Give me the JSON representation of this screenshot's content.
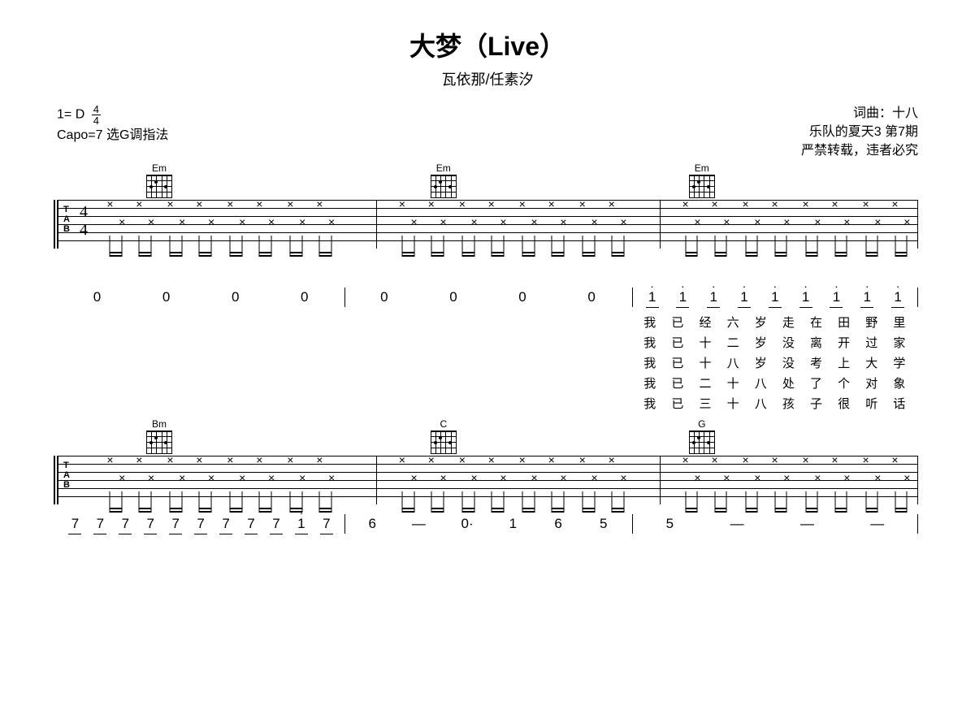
{
  "title": "大梦（Live）",
  "subtitle": "瓦依那/任素汐",
  "meta_left": {
    "key_label": "1= D",
    "time_num": "4",
    "time_den": "4",
    "capo": "Capo=7  选G调指法"
  },
  "meta_right": {
    "credit": "词曲：十八",
    "show": "乐队的夏天3 第7期",
    "notice": "严禁转载，违者必究"
  },
  "system1": {
    "chords": [
      {
        "name": "Em",
        "left_pct": 10
      },
      {
        "name": "Em",
        "left_pct": 43
      },
      {
        "name": "Em",
        "left_pct": 73
      }
    ],
    "barlines_pct": [
      37,
      70
    ],
    "strum_groups": [
      {
        "start": 6,
        "count": 4,
        "span": 7
      },
      {
        "start": 40,
        "count": 4,
        "span": 7
      },
      {
        "start": 73,
        "count": 4,
        "span": 7
      }
    ],
    "numbers": {
      "m1": [
        "0",
        "0",
        "0",
        "0"
      ],
      "m2": [
        "0",
        "0",
        "0",
        "0"
      ],
      "m3": [
        "i",
        "i",
        "i",
        "i",
        "i",
        "i",
        "i",
        "i",
        "i"
      ]
    },
    "lyrics": [
      [
        "我",
        "已",
        "经",
        "六",
        "岁",
        "走",
        "在",
        "田",
        "野",
        "里"
      ],
      [
        "我",
        "已",
        "十",
        "二",
        "岁",
        "没",
        "离",
        "开",
        "过",
        "家"
      ],
      [
        "我",
        "已",
        "十",
        "八",
        "岁",
        "没",
        "考",
        "上",
        "大",
        "学"
      ],
      [
        "我",
        "已",
        "二",
        "十",
        "八",
        "处",
        "了",
        "个",
        "对",
        "象"
      ],
      [
        "我",
        "已",
        "三",
        "十",
        "八",
        "孩",
        "子",
        "很",
        "听",
        "话"
      ]
    ]
  },
  "system2": {
    "chords": [
      {
        "name": "Bm",
        "left_pct": 10
      },
      {
        "name": "C",
        "left_pct": 43
      },
      {
        "name": "G",
        "left_pct": 73
      }
    ],
    "barlines_pct": [
      37,
      70
    ],
    "numbers": {
      "m1": [
        "7",
        "7",
        "7",
        "7",
        "7",
        "7",
        "7",
        "7",
        "7",
        "1",
        "7"
      ],
      "m2": [
        "6",
        "—",
        "0·",
        "1",
        "6",
        "5"
      ],
      "m3": [
        "5",
        "—",
        "—",
        "—"
      ]
    }
  },
  "colors": {
    "line": "#000000",
    "bg": "#ffffff"
  }
}
